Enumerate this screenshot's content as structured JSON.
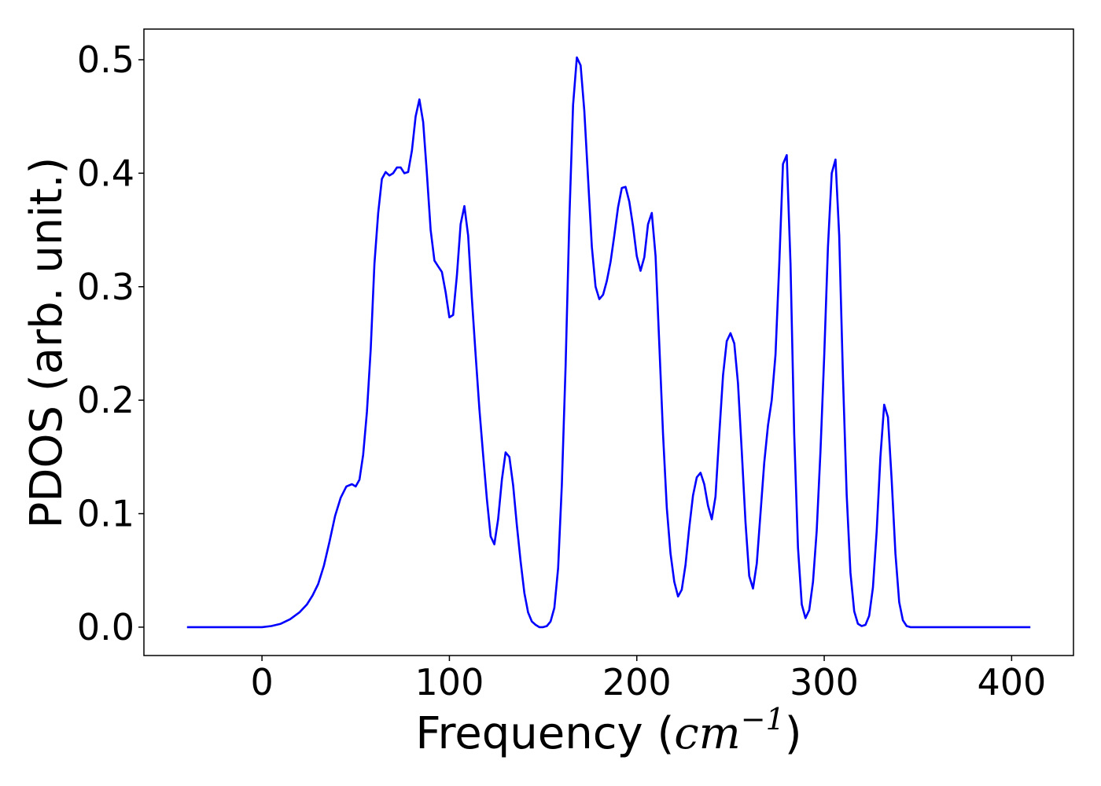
{
  "chart_data": {
    "type": "line",
    "xlabel_text": "Frequency (",
    "xlabel_unit": "cm",
    "xlabel_exponent": "−1",
    "xlabel_close": ")",
    "ylabel": "PDOS (arb. unit.)",
    "xlim": [
      -63,
      433
    ],
    "ylim": [
      -0.025,
      0.527
    ],
    "x_ticks": [
      0,
      100,
      200,
      300,
      400
    ],
    "x_tick_labels": [
      "0",
      "100",
      "200",
      "300",
      "400"
    ],
    "y_ticks": [
      0.0,
      0.1,
      0.2,
      0.3,
      0.4,
      0.5
    ],
    "y_tick_labels": [
      "0.0",
      "0.1",
      "0.2",
      "0.3",
      "0.4",
      "0.5"
    ],
    "grid": false,
    "series": [
      {
        "color": "#0000ff",
        "points": [
          [
            -40,
            0.0
          ],
          [
            0,
            0.0
          ],
          [
            5,
            0.001
          ],
          [
            10,
            0.003
          ],
          [
            15,
            0.007
          ],
          [
            20,
            0.013
          ],
          [
            24,
            0.02
          ],
          [
            27,
            0.028
          ],
          [
            30,
            0.038
          ],
          [
            33,
            0.054
          ],
          [
            36,
            0.075
          ],
          [
            39,
            0.098
          ],
          [
            42,
            0.114
          ],
          [
            45,
            0.124
          ],
          [
            48,
            0.126
          ],
          [
            50,
            0.124
          ],
          [
            52,
            0.13
          ],
          [
            54,
            0.152
          ],
          [
            56,
            0.19
          ],
          [
            58,
            0.245
          ],
          [
            60,
            0.32
          ],
          [
            62,
            0.365
          ],
          [
            64,
            0.395
          ],
          [
            66,
            0.401
          ],
          [
            68,
            0.398
          ],
          [
            70,
            0.4
          ],
          [
            72,
            0.405
          ],
          [
            74,
            0.405
          ],
          [
            76,
            0.4
          ],
          [
            78,
            0.401
          ],
          [
            80,
            0.42
          ],
          [
            82,
            0.45
          ],
          [
            84,
            0.465
          ],
          [
            86,
            0.445
          ],
          [
            88,
            0.4
          ],
          [
            90,
            0.35
          ],
          [
            92,
            0.323
          ],
          [
            94,
            0.318
          ],
          [
            96,
            0.313
          ],
          [
            98,
            0.295
          ],
          [
            100,
            0.273
          ],
          [
            102,
            0.275
          ],
          [
            104,
            0.31
          ],
          [
            106,
            0.355
          ],
          [
            108,
            0.371
          ],
          [
            110,
            0.345
          ],
          [
            112,
            0.29
          ],
          [
            114,
            0.24
          ],
          [
            116,
            0.192
          ],
          [
            118,
            0.152
          ],
          [
            120,
            0.113
          ],
          [
            122,
            0.08
          ],
          [
            124,
            0.073
          ],
          [
            126,
            0.095
          ],
          [
            128,
            0.13
          ],
          [
            130,
            0.154
          ],
          [
            132,
            0.15
          ],
          [
            134,
            0.125
          ],
          [
            136,
            0.09
          ],
          [
            138,
            0.058
          ],
          [
            140,
            0.03
          ],
          [
            142,
            0.013
          ],
          [
            144,
            0.005
          ],
          [
            146,
            0.002
          ],
          [
            148,
            0.0
          ],
          [
            150,
            0.0
          ],
          [
            152,
            0.001
          ],
          [
            154,
            0.005
          ],
          [
            156,
            0.017
          ],
          [
            158,
            0.052
          ],
          [
            160,
            0.125
          ],
          [
            162,
            0.23
          ],
          [
            164,
            0.36
          ],
          [
            166,
            0.46
          ],
          [
            168,
            0.502
          ],
          [
            170,
            0.495
          ],
          [
            172,
            0.455
          ],
          [
            174,
            0.395
          ],
          [
            176,
            0.335
          ],
          [
            178,
            0.3
          ],
          [
            180,
            0.289
          ],
          [
            182,
            0.293
          ],
          [
            184,
            0.305
          ],
          [
            186,
            0.322
          ],
          [
            188,
            0.345
          ],
          [
            190,
            0.37
          ],
          [
            192,
            0.387
          ],
          [
            194,
            0.388
          ],
          [
            196,
            0.375
          ],
          [
            198,
            0.353
          ],
          [
            200,
            0.327
          ],
          [
            202,
            0.314
          ],
          [
            204,
            0.326
          ],
          [
            206,
            0.355
          ],
          [
            208,
            0.365
          ],
          [
            210,
            0.327
          ],
          [
            212,
            0.25
          ],
          [
            214,
            0.17
          ],
          [
            216,
            0.105
          ],
          [
            218,
            0.065
          ],
          [
            220,
            0.04
          ],
          [
            222,
            0.027
          ],
          [
            224,
            0.033
          ],
          [
            226,
            0.055
          ],
          [
            228,
            0.088
          ],
          [
            230,
            0.116
          ],
          [
            232,
            0.132
          ],
          [
            234,
            0.136
          ],
          [
            236,
            0.126
          ],
          [
            238,
            0.107
          ],
          [
            240,
            0.095
          ],
          [
            242,
            0.115
          ],
          [
            244,
            0.17
          ],
          [
            246,
            0.222
          ],
          [
            248,
            0.252
          ],
          [
            250,
            0.259
          ],
          [
            252,
            0.25
          ],
          [
            254,
            0.215
          ],
          [
            256,
            0.155
          ],
          [
            258,
            0.092
          ],
          [
            260,
            0.045
          ],
          [
            262,
            0.034
          ],
          [
            264,
            0.056
          ],
          [
            266,
            0.1
          ],
          [
            268,
            0.145
          ],
          [
            270,
            0.178
          ],
          [
            272,
            0.2
          ],
          [
            274,
            0.24
          ],
          [
            276,
            0.32
          ],
          [
            278,
            0.408
          ],
          [
            280,
            0.416
          ],
          [
            282,
            0.32
          ],
          [
            284,
            0.17
          ],
          [
            286,
            0.07
          ],
          [
            288,
            0.02
          ],
          [
            290,
            0.008
          ],
          [
            292,
            0.015
          ],
          [
            294,
            0.04
          ],
          [
            296,
            0.085
          ],
          [
            298,
            0.155
          ],
          [
            300,
            0.24
          ],
          [
            302,
            0.335
          ],
          [
            304,
            0.4
          ],
          [
            306,
            0.412
          ],
          [
            308,
            0.345
          ],
          [
            310,
            0.22
          ],
          [
            312,
            0.117
          ],
          [
            314,
            0.048
          ],
          [
            316,
            0.014
          ],
          [
            318,
            0.003
          ],
          [
            320,
            0.001
          ],
          [
            322,
            0.002
          ],
          [
            324,
            0.01
          ],
          [
            326,
            0.035
          ],
          [
            328,
            0.085
          ],
          [
            330,
            0.15
          ],
          [
            332,
            0.196
          ],
          [
            334,
            0.185
          ],
          [
            336,
            0.13
          ],
          [
            338,
            0.065
          ],
          [
            340,
            0.022
          ],
          [
            342,
            0.006
          ],
          [
            344,
            0.001
          ],
          [
            346,
            0.0
          ],
          [
            360,
            0.0
          ],
          [
            410,
            0.0
          ]
        ]
      }
    ]
  }
}
